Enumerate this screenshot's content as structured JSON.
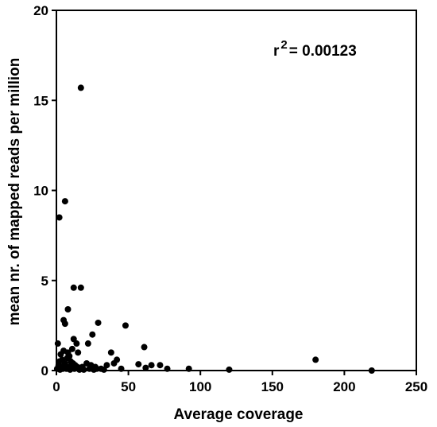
{
  "chart_data": {
    "type": "scatter",
    "title": "",
    "xlabel": "Average coverage",
    "ylabel": "mean nr. of mapped reads per million",
    "xlim": [
      0,
      250
    ],
    "ylim": [
      0,
      20
    ],
    "xticks": [
      0,
      50,
      100,
      150,
      200,
      250
    ],
    "yticks": [
      0,
      5,
      10,
      15,
      20
    ],
    "grid": false,
    "legend": "none",
    "annotation": {
      "prefix": "r",
      "superscript": "2",
      "value": "= 0.00123"
    },
    "marker_color": "#000000",
    "points": [
      [
        17,
        15.7
      ],
      [
        6,
        9.4
      ],
      [
        2,
        8.5
      ],
      [
        12,
        4.6
      ],
      [
        17,
        4.6
      ],
      [
        8,
        3.4
      ],
      [
        5,
        2.8
      ],
      [
        6,
        2.6
      ],
      [
        29,
        2.65
      ],
      [
        48,
        2.5
      ],
      [
        25,
        2.0
      ],
      [
        12,
        1.75
      ],
      [
        14,
        1.5
      ],
      [
        1,
        1.5
      ],
      [
        22,
        1.5
      ],
      [
        61,
        1.3
      ],
      [
        38,
        1.0
      ],
      [
        11,
        1.2
      ],
      [
        8,
        1.0
      ],
      [
        15,
        1.0
      ],
      [
        180,
        0.6
      ],
      [
        9,
        0.8
      ],
      [
        2,
        0.5
      ],
      [
        4,
        0.6
      ],
      [
        6,
        0.4
      ],
      [
        10,
        0.5
      ],
      [
        13,
        0.3
      ],
      [
        18,
        0.2
      ],
      [
        21,
        0.4
      ],
      [
        24,
        0.3
      ],
      [
        27,
        0.2
      ],
      [
        31,
        0.1
      ],
      [
        35,
        0.3
      ],
      [
        40,
        0.4
      ],
      [
        42,
        0.6
      ],
      [
        45,
        0.1
      ],
      [
        57,
        0.35
      ],
      [
        62,
        0.15
      ],
      [
        66,
        0.3
      ],
      [
        72,
        0.3
      ],
      [
        77,
        0.1
      ],
      [
        92,
        0.1
      ],
      [
        120,
        0.05
      ],
      [
        219,
        0.0
      ],
      [
        0.5,
        0.1
      ],
      [
        1.5,
        0.3
      ],
      [
        2.5,
        0.05
      ],
      [
        3.5,
        0.2
      ],
      [
        4.5,
        0.1
      ],
      [
        5.5,
        0.3
      ],
      [
        7,
        0.1
      ],
      [
        8.5,
        0.2
      ],
      [
        9.5,
        0.05
      ],
      [
        10.5,
        0.15
      ],
      [
        11.5,
        0.4
      ],
      [
        12.5,
        0.1
      ],
      [
        14.5,
        0.2
      ],
      [
        16,
        0.05
      ],
      [
        19,
        0.05
      ],
      [
        23,
        0.1
      ],
      [
        26,
        0.05
      ],
      [
        28,
        0.1
      ],
      [
        33,
        0.05
      ],
      [
        3,
        0.9
      ],
      [
        7.5,
        0.7
      ],
      [
        5,
        1.1
      ]
    ]
  }
}
